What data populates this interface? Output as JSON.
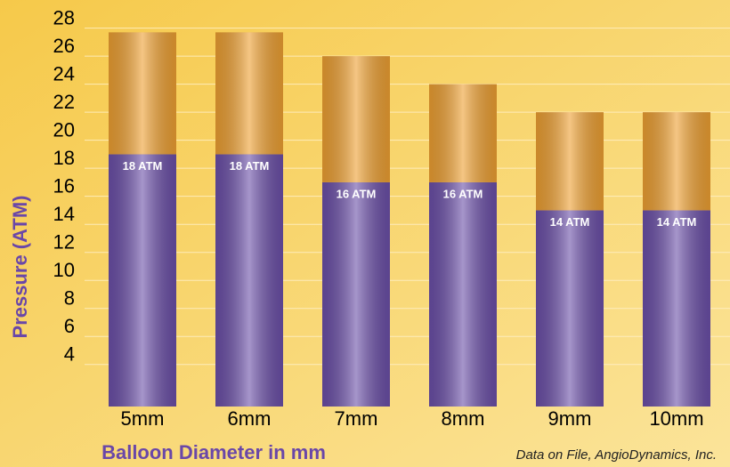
{
  "chart_data": {
    "type": "stacked_bar",
    "y_label": "Pressure (ATM)",
    "x_label": "Balloon Diameter in mm",
    "note": "Data on File, AngioDynamics, Inc.",
    "categories": [
      "5mm",
      "6mm",
      "7mm",
      "8mm",
      "9mm",
      "10mm"
    ],
    "series": [
      {
        "color": "#6b4fa8",
        "values": [
          18,
          18,
          16,
          16,
          14,
          14
        ],
        "value_labels": [
          "18 ATM",
          "18 ATM",
          "16 ATM",
          "16 ATM",
          "14 ATM",
          "14 ATM"
        ]
      },
      {
        "color": "#eea032",
        "values": [
          8.7,
          8.7,
          9,
          7,
          7,
          7
        ]
      }
    ],
    "ylim": [
      1,
      29.5
    ],
    "yticks": [
      4,
      6,
      8,
      10,
      12,
      14,
      16,
      18,
      20,
      22,
      24,
      26,
      28
    ],
    "grid": true
  }
}
